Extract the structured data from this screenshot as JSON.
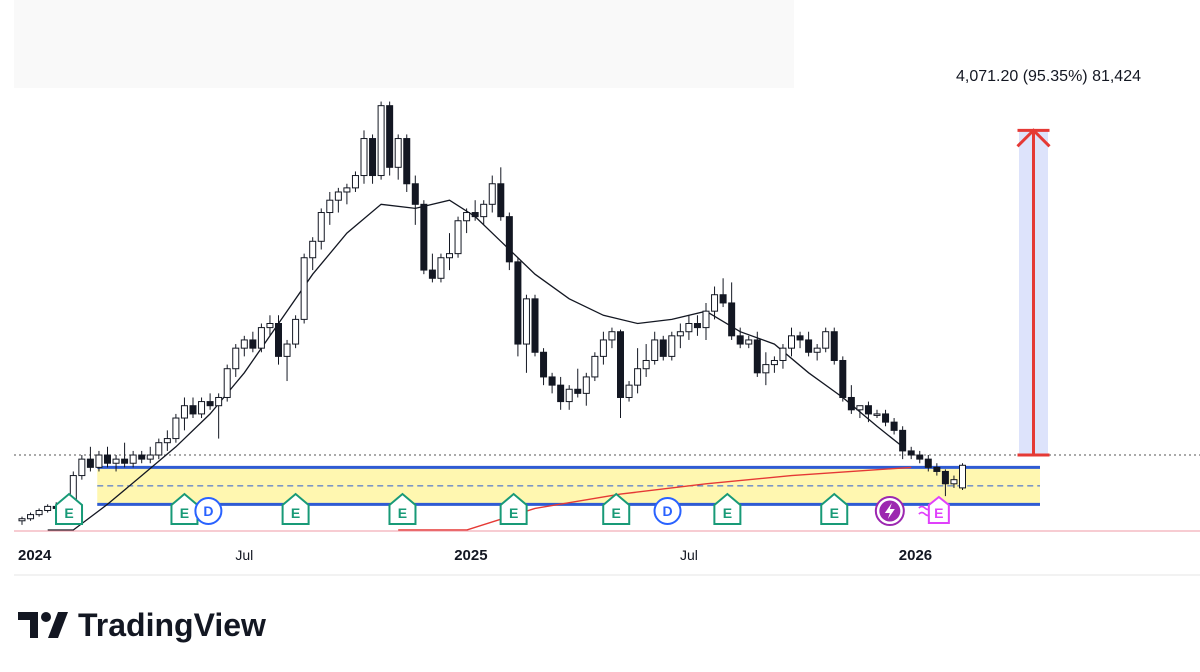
{
  "chart_data": {
    "type": "candlestick",
    "x_axis": {
      "tick_labels": [
        {
          "label": "2024",
          "major": true,
          "week": 0
        },
        {
          "label": "Jul",
          "major": false,
          "week": 26
        },
        {
          "label": "2025",
          "major": true,
          "week": 52.5
        },
        {
          "label": "Jul",
          "major": false,
          "week": 78
        },
        {
          "label": "2026",
          "major": true,
          "week": 104.5
        }
      ]
    },
    "price_scale": {
      "min": 0,
      "max": 100
    },
    "candles": [
      {
        "o": 2,
        "h": 3,
        "l": 1,
        "c": 2.5
      },
      {
        "o": 2.5,
        "h": 4,
        "l": 2,
        "c": 3.5
      },
      {
        "o": 3.5,
        "h": 5,
        "l": 3,
        "c": 4.5
      },
      {
        "o": 4.5,
        "h": 6,
        "l": 4,
        "c": 5.5
      },
      {
        "o": 5.5,
        "h": 6.5,
        "l": 4.5,
        "c": 5
      },
      {
        "o": 5,
        "h": 7,
        "l": 4.5,
        "c": 6.5
      },
      {
        "o": 6.5,
        "h": 14,
        "l": 6,
        "c": 13
      },
      {
        "o": 13,
        "h": 18,
        "l": 12,
        "c": 17
      },
      {
        "o": 17,
        "h": 20,
        "l": 14,
        "c": 15
      },
      {
        "o": 15,
        "h": 19,
        "l": 14,
        "c": 18
      },
      {
        "o": 18,
        "h": 20,
        "l": 15,
        "c": 16
      },
      {
        "o": 16,
        "h": 18,
        "l": 14,
        "c": 17
      },
      {
        "o": 17,
        "h": 21,
        "l": 15,
        "c": 16
      },
      {
        "o": 16,
        "h": 19,
        "l": 15,
        "c": 18
      },
      {
        "o": 18,
        "h": 19,
        "l": 16,
        "c": 17
      },
      {
        "o": 17,
        "h": 20,
        "l": 16,
        "c": 18
      },
      {
        "o": 18,
        "h": 22,
        "l": 17,
        "c": 21
      },
      {
        "o": 21,
        "h": 24,
        "l": 19,
        "c": 22
      },
      {
        "o": 22,
        "h": 28,
        "l": 21,
        "c": 27
      },
      {
        "o": 27,
        "h": 32,
        "l": 24,
        "c": 30
      },
      {
        "o": 30,
        "h": 32,
        "l": 27,
        "c": 28
      },
      {
        "o": 28,
        "h": 32,
        "l": 27,
        "c": 31
      },
      {
        "o": 31,
        "h": 33,
        "l": 29,
        "c": 30
      },
      {
        "o": 30,
        "h": 33,
        "l": 22,
        "c": 32
      },
      {
        "o": 32,
        "h": 40,
        "l": 31,
        "c": 39
      },
      {
        "o": 39,
        "h": 45,
        "l": 37,
        "c": 44
      },
      {
        "o": 44,
        "h": 47,
        "l": 42,
        "c": 46
      },
      {
        "o": 46,
        "h": 48,
        "l": 43,
        "c": 44
      },
      {
        "o": 44,
        "h": 50,
        "l": 43,
        "c": 49
      },
      {
        "o": 49,
        "h": 52,
        "l": 47,
        "c": 50
      },
      {
        "o": 50,
        "h": 52,
        "l": 40,
        "c": 42
      },
      {
        "o": 42,
        "h": 46,
        "l": 36,
        "c": 45
      },
      {
        "o": 45,
        "h": 52,
        "l": 44,
        "c": 51
      },
      {
        "o": 51,
        "h": 67,
        "l": 50,
        "c": 66
      },
      {
        "o": 66,
        "h": 71,
        "l": 63,
        "c": 70
      },
      {
        "o": 70,
        "h": 78,
        "l": 68,
        "c": 77
      },
      {
        "o": 77,
        "h": 82,
        "l": 74,
        "c": 80
      },
      {
        "o": 80,
        "h": 83,
        "l": 77,
        "c": 82
      },
      {
        "o": 82,
        "h": 84,
        "l": 79,
        "c": 83
      },
      {
        "o": 83,
        "h": 87,
        "l": 82,
        "c": 86
      },
      {
        "o": 86,
        "h": 97,
        "l": 84,
        "c": 95
      },
      {
        "o": 95,
        "h": 96,
        "l": 84,
        "c": 86
      },
      {
        "o": 86,
        "h": 104,
        "l": 85,
        "c": 103
      },
      {
        "o": 103,
        "h": 104,
        "l": 86,
        "c": 88
      },
      {
        "o": 88,
        "h": 96,
        "l": 85,
        "c": 95
      },
      {
        "o": 95,
        "h": 96,
        "l": 82,
        "c": 84
      },
      {
        "o": 84,
        "h": 86,
        "l": 74,
        "c": 79
      },
      {
        "o": 79,
        "h": 80,
        "l": 62,
        "c": 63
      },
      {
        "o": 63,
        "h": 67,
        "l": 60,
        "c": 61
      },
      {
        "o": 61,
        "h": 67,
        "l": 60,
        "c": 66
      },
      {
        "o": 66,
        "h": 72,
        "l": 63,
        "c": 67
      },
      {
        "o": 67,
        "h": 76,
        "l": 66,
        "c": 75
      },
      {
        "o": 75,
        "h": 78,
        "l": 72,
        "c": 77
      },
      {
        "o": 77,
        "h": 80,
        "l": 75,
        "c": 76
      },
      {
        "o": 76,
        "h": 80,
        "l": 74,
        "c": 79
      },
      {
        "o": 79,
        "h": 86,
        "l": 77,
        "c": 84
      },
      {
        "o": 84,
        "h": 88,
        "l": 75,
        "c": 76
      },
      {
        "o": 76,
        "h": 77,
        "l": 63,
        "c": 65
      },
      {
        "o": 65,
        "h": 66,
        "l": 42,
        "c": 45
      },
      {
        "o": 45,
        "h": 57,
        "l": 38,
        "c": 56
      },
      {
        "o": 56,
        "h": 57,
        "l": 42,
        "c": 43
      },
      {
        "o": 43,
        "h": 44,
        "l": 35,
        "c": 37
      },
      {
        "o": 37,
        "h": 38,
        "l": 33,
        "c": 35
      },
      {
        "o": 35,
        "h": 37,
        "l": 29,
        "c": 31
      },
      {
        "o": 31,
        "h": 35,
        "l": 29,
        "c": 34
      },
      {
        "o": 34,
        "h": 39,
        "l": 32,
        "c": 33
      },
      {
        "o": 33,
        "h": 38,
        "l": 30,
        "c": 37
      },
      {
        "o": 37,
        "h": 43,
        "l": 36,
        "c": 42
      },
      {
        "o": 42,
        "h": 48,
        "l": 40,
        "c": 46
      },
      {
        "o": 46,
        "h": 49,
        "l": 44,
        "c": 48
      },
      {
        "o": 48,
        "h": 48.5,
        "l": 27,
        "c": 32
      },
      {
        "o": 32,
        "h": 36,
        "l": 31,
        "c": 35
      },
      {
        "o": 35,
        "h": 44,
        "l": 33,
        "c": 39
      },
      {
        "o": 39,
        "h": 45,
        "l": 37,
        "c": 41
      },
      {
        "o": 41,
        "h": 48,
        "l": 40,
        "c": 46
      },
      {
        "o": 46,
        "h": 47,
        "l": 41,
        "c": 42
      },
      {
        "o": 42,
        "h": 48,
        "l": 41,
        "c": 47
      },
      {
        "o": 47,
        "h": 50,
        "l": 44,
        "c": 48
      },
      {
        "o": 48,
        "h": 52,
        "l": 46,
        "c": 50
      },
      {
        "o": 50,
        "h": 52,
        "l": 47,
        "c": 49
      },
      {
        "o": 49,
        "h": 55,
        "l": 46,
        "c": 53
      },
      {
        "o": 53,
        "h": 59,
        "l": 51,
        "c": 57
      },
      {
        "o": 57,
        "h": 61,
        "l": 54,
        "c": 55
      },
      {
        "o": 55,
        "h": 60,
        "l": 46,
        "c": 47
      },
      {
        "o": 47,
        "h": 49,
        "l": 44,
        "c": 45
      },
      {
        "o": 45,
        "h": 47,
        "l": 44,
        "c": 46
      },
      {
        "o": 46,
        "h": 48,
        "l": 37,
        "c": 38
      },
      {
        "o": 38,
        "h": 43,
        "l": 35,
        "c": 40
      },
      {
        "o": 40,
        "h": 42,
        "l": 38,
        "c": 41
      },
      {
        "o": 41,
        "h": 45,
        "l": 39,
        "c": 44
      },
      {
        "o": 44,
        "h": 49,
        "l": 42,
        "c": 47
      },
      {
        "o": 47,
        "h": 48,
        "l": 44,
        "c": 46
      },
      {
        "o": 46,
        "h": 48,
        "l": 42,
        "c": 43
      },
      {
        "o": 43,
        "h": 45,
        "l": 41,
        "c": 44
      },
      {
        "o": 44,
        "h": 49,
        "l": 43,
        "c": 48
      },
      {
        "o": 48,
        "h": 49,
        "l": 40,
        "c": 41
      },
      {
        "o": 41,
        "h": 42,
        "l": 31,
        "c": 32
      },
      {
        "o": 32,
        "h": 35,
        "l": 28,
        "c": 29
      },
      {
        "o": 29,
        "h": 30,
        "l": 27,
        "c": 30
      },
      {
        "o": 30,
        "h": 31,
        "l": 26,
        "c": 28
      },
      {
        "o": 28,
        "h": 29,
        "l": 27,
        "c": 28
      },
      {
        "o": 28,
        "h": 29,
        "l": 25,
        "c": 26
      },
      {
        "o": 26,
        "h": 27,
        "l": 23,
        "c": 24
      },
      {
        "o": 24,
        "h": 25,
        "l": 17,
        "c": 19
      },
      {
        "o": 19,
        "h": 20,
        "l": 17,
        "c": 18
      },
      {
        "o": 18,
        "h": 19,
        "l": 16,
        "c": 17
      },
      {
        "o": 17,
        "h": 18,
        "l": 14,
        "c": 15
      },
      {
        "o": 15,
        "h": 16,
        "l": 13,
        "c": 14
      },
      {
        "o": 14,
        "h": 14.5,
        "l": 8,
        "c": 11
      },
      {
        "o": 11,
        "h": 13,
        "l": 10,
        "c": 12
      },
      {
        "o": 10,
        "h": 16,
        "l": 9.5,
        "c": 15.5
      }
    ],
    "moving_average": {
      "color": "#131722",
      "values": [
        [
          3,
          -20
        ],
        [
          6,
          -5
        ],
        [
          10,
          6
        ],
        [
          14,
          13
        ],
        [
          18,
          20
        ],
        [
          22,
          28
        ],
        [
          26,
          38
        ],
        [
          30,
          50
        ],
        [
          34,
          62
        ],
        [
          38,
          72
        ],
        [
          42,
          79
        ],
        [
          46,
          78
        ],
        [
          50,
          80
        ],
        [
          53,
          76
        ],
        [
          56,
          70
        ],
        [
          60,
          62
        ],
        [
          64,
          56
        ],
        [
          68,
          52
        ],
        [
          72,
          50
        ],
        [
          76,
          51
        ],
        [
          80,
          53
        ],
        [
          84,
          48
        ],
        [
          88,
          45
        ],
        [
          92,
          38
        ],
        [
          96,
          32
        ],
        [
          100,
          25
        ],
        [
          103,
          20
        ]
      ]
    },
    "long_ma": {
      "color": "#e53935",
      "values": [
        [
          44,
          -20
        ],
        [
          52,
          -5
        ],
        [
          60,
          5
        ],
        [
          70,
          8.5
        ],
        [
          80,
          11
        ],
        [
          90,
          13
        ],
        [
          104,
          15
        ]
      ]
    },
    "support_zone": {
      "upper": 15,
      "lower": 6,
      "mid": 10.5,
      "line_color": "#2f5bd3",
      "fill_color": "#fff7b0"
    },
    "current_price_level": 18,
    "measure_tool": {
      "label": "4,071.20 (95.35%) 81,424",
      "from": 18,
      "to": 97,
      "color": "#e53935",
      "fill": "#dde3fb"
    },
    "event_markers": [
      {
        "type": "E",
        "week": 5.5,
        "color": "#189a77"
      },
      {
        "type": "E",
        "week": 19,
        "color": "#189a77"
      },
      {
        "type": "D",
        "week": 21.8,
        "color": "#2962ff"
      },
      {
        "type": "E",
        "week": 32,
        "color": "#189a77"
      },
      {
        "type": "E",
        "week": 44.5,
        "color": "#189a77"
      },
      {
        "type": "E",
        "week": 57.5,
        "color": "#189a77"
      },
      {
        "type": "E",
        "week": 69.5,
        "color": "#189a77"
      },
      {
        "type": "D",
        "week": 75.5,
        "color": "#2962ff"
      },
      {
        "type": "E",
        "week": 82.5,
        "color": "#189a77"
      },
      {
        "type": "E",
        "week": 95,
        "color": "#189a77"
      },
      {
        "type": "flash",
        "week": 101.5,
        "color": "#9c27b0"
      },
      {
        "type": "E-upcoming",
        "week": 107,
        "color": "#e040fb"
      }
    ]
  },
  "brand": {
    "name": "TradingView",
    "logo_icon": "tradingview-logo-icon"
  }
}
